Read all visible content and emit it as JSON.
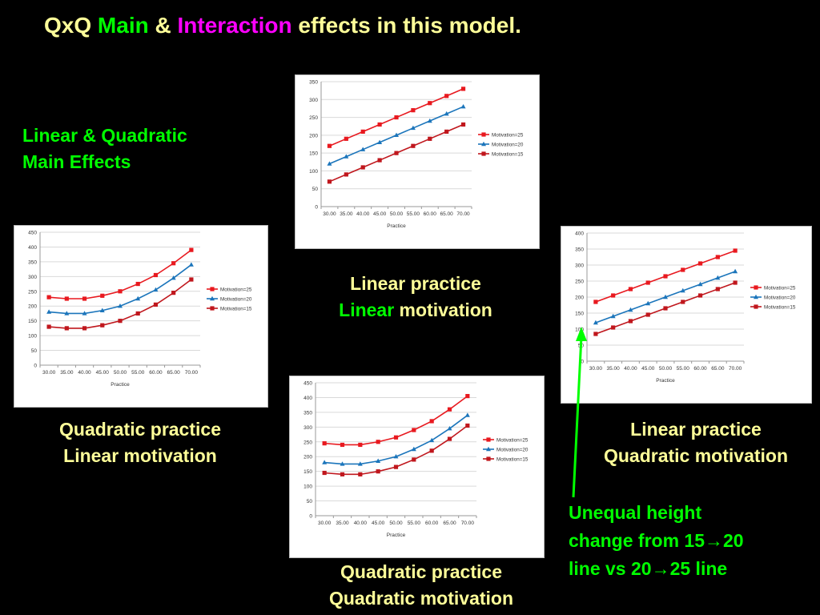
{
  "title": {
    "prefix": "QxQ ",
    "main": "Main",
    "amp": " & ",
    "interaction": "Interaction",
    "suffix": " effects in this model."
  },
  "main_effects_label": {
    "line1": "Linear & Quadratic",
    "line2": "Main Effects"
  },
  "captions": {
    "top": {
      "line1": "Linear practice",
      "line2_highlight": "Linear",
      "line2_rest": " motivation"
    },
    "left": {
      "line1": "Quadratic practice",
      "line2": "Linear motivation"
    },
    "right": {
      "line1": "Linear practice",
      "line2": "Quadratic motivation"
    },
    "bottom": {
      "line1": "Quadratic practice",
      "line2": "Quadratic motivation"
    }
  },
  "note": {
    "line1": "Unequal height",
    "line2_a": "change from 15",
    "line2_b": "20",
    "line3_a": "line vs 20",
    "line3_b": "25 line",
    "arrow_glyph": "→"
  },
  "colors": {
    "motivation25": "#e8191f",
    "motivation20": "#1b75bb",
    "motivation15": "#c0171d",
    "note_arrow": "#00ff00"
  },
  "chart_data": [
    {
      "id": "top",
      "type": "line",
      "categories": [
        "30.00",
        "35.00",
        "40.00",
        "45.00",
        "50.00",
        "55.00",
        "60.00",
        "65.00",
        "70.00"
      ],
      "xlabel": "Practice",
      "ylim": [
        0,
        350
      ],
      "yticks": [
        0,
        50,
        100,
        150,
        200,
        250,
        300,
        350
      ],
      "grid": true,
      "legend": "right",
      "series": [
        {
          "name": "Motivation=25",
          "marker": "square",
          "color": "#e8191f",
          "values": [
            170,
            190,
            210,
            230,
            250,
            270,
            290,
            310,
            330
          ]
        },
        {
          "name": "Motivation=20",
          "marker": "triangle",
          "color": "#1b75bb",
          "values": [
            120,
            140,
            160,
            180,
            200,
            220,
            240,
            260,
            280
          ]
        },
        {
          "name": "Motivation=15",
          "marker": "square",
          "color": "#c0171d",
          "values": [
            70,
            90,
            110,
            130,
            150,
            170,
            190,
            210,
            230
          ]
        }
      ]
    },
    {
      "id": "left",
      "type": "line",
      "categories": [
        "30.00",
        "35.00",
        "40.00",
        "45.00",
        "50.00",
        "55.00",
        "60.00",
        "65.00",
        "70.00"
      ],
      "xlabel": "Practice",
      "ylim": [
        0,
        450
      ],
      "yticks": [
        0,
        50,
        100,
        150,
        200,
        250,
        300,
        350,
        400,
        450
      ],
      "grid": true,
      "legend": "right",
      "series": [
        {
          "name": "Motivation=25",
          "marker": "square",
          "color": "#e8191f",
          "values": [
            230,
            225,
            225,
            235,
            250,
            275,
            305,
            345,
            390
          ]
        },
        {
          "name": "Motivation=20",
          "marker": "triangle",
          "color": "#1b75bb",
          "values": [
            180,
            175,
            175,
            185,
            200,
            225,
            255,
            295,
            340
          ]
        },
        {
          "name": "Motivation=15",
          "marker": "square",
          "color": "#c0171d",
          "values": [
            130,
            125,
            125,
            135,
            150,
            175,
            205,
            245,
            290
          ]
        }
      ]
    },
    {
      "id": "right",
      "type": "line",
      "categories": [
        "30.00",
        "35.00",
        "40.00",
        "45.00",
        "50.00",
        "55.00",
        "60.00",
        "65.00",
        "70.00"
      ],
      "xlabel": "Practice",
      "ylim": [
        0,
        400
      ],
      "yticks": [
        0,
        50,
        100,
        150,
        200,
        250,
        300,
        350,
        400
      ],
      "grid": true,
      "legend": "right",
      "series": [
        {
          "name": "Motivation=25",
          "marker": "square",
          "color": "#e8191f",
          "values": [
            185,
            205,
            225,
            245,
            265,
            285,
            305,
            325,
            345
          ]
        },
        {
          "name": "Motivation=20",
          "marker": "triangle",
          "color": "#1b75bb",
          "values": [
            120,
            140,
            160,
            180,
            200,
            220,
            240,
            260,
            280
          ]
        },
        {
          "name": "Motivation=15",
          "marker": "square",
          "color": "#c0171d",
          "values": [
            85,
            105,
            125,
            145,
            165,
            185,
            205,
            225,
            245
          ]
        }
      ]
    },
    {
      "id": "bottom",
      "type": "line",
      "categories": [
        "30.00",
        "35.00",
        "40.00",
        "45.00",
        "50.00",
        "55.00",
        "60.00",
        "65.00",
        "70.00"
      ],
      "xlabel": "Practice",
      "ylim": [
        0,
        450
      ],
      "yticks": [
        0,
        50,
        100,
        150,
        200,
        250,
        300,
        350,
        400,
        450
      ],
      "grid": true,
      "legend": "right",
      "series": [
        {
          "name": "Motivation=25",
          "marker": "square",
          "color": "#e8191f",
          "values": [
            245,
            240,
            240,
            250,
            265,
            290,
            320,
            360,
            405
          ]
        },
        {
          "name": "Motivation=20",
          "marker": "triangle",
          "color": "#1b75bb",
          "values": [
            180,
            175,
            175,
            185,
            200,
            225,
            255,
            295,
            340
          ]
        },
        {
          "name": "Motivation=15",
          "marker": "square",
          "color": "#c0171d",
          "values": [
            145,
            140,
            140,
            150,
            165,
            190,
            220,
            260,
            305
          ]
        }
      ]
    }
  ]
}
